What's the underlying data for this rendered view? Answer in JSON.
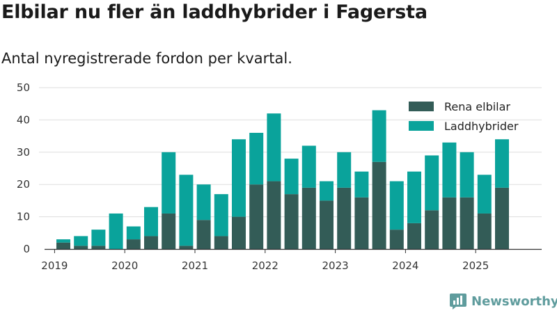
{
  "header": {
    "title": "Elbilar nu fler än laddhybrider i Fagersta",
    "subtitle": "Antal nyregistrerade fordon per kvartal."
  },
  "brand": {
    "name": "Newsworthy",
    "color": "#5f9c9d"
  },
  "colors": {
    "electric": "#335c57",
    "hybrid": "#0aa39b",
    "grid": "#dddddd",
    "axis": "#333333"
  },
  "chart_data": {
    "type": "bar",
    "stacked": true,
    "title": "Elbilar nu fler än laddhybrider i Fagersta",
    "subtitle": "Antal nyregistrerade fordon per kvartal.",
    "xlabel": "",
    "ylabel": "",
    "ylim": [
      0,
      50
    ],
    "yticks": [
      0,
      10,
      20,
      30,
      40,
      50
    ],
    "grid": true,
    "legend_position": "top-right",
    "year_ticks": [
      "2019",
      "2020",
      "2021",
      "2022",
      "2023",
      "2024",
      "2025"
    ],
    "categories": [
      "2019 Q1",
      "2019 Q2",
      "2019 Q3",
      "2019 Q4",
      "2020 Q1",
      "2020 Q2",
      "2020 Q3",
      "2020 Q4",
      "2021 Q1",
      "2021 Q2",
      "2021 Q3",
      "2021 Q4",
      "2022 Q1",
      "2022 Q2",
      "2022 Q3",
      "2022 Q4",
      "2023 Q1",
      "2023 Q2",
      "2023 Q3",
      "2023 Q4",
      "2024 Q1",
      "2024 Q2",
      "2024 Q3",
      "2024 Q4",
      "2025 Q1",
      "2025 Q2",
      "2025 Q3"
    ],
    "series": [
      {
        "name": "Rena elbilar",
        "values": [
          2,
          1,
          1,
          0,
          3,
          4,
          11,
          1,
          9,
          4,
          10,
          20,
          21,
          17,
          19,
          15,
          19,
          16,
          27,
          6,
          8,
          12,
          16,
          16,
          11,
          19,
          0
        ]
      },
      {
        "name": "Laddhybrider",
        "values": [
          1,
          3,
          5,
          11,
          4,
          9,
          19,
          22,
          11,
          13,
          24,
          16,
          21,
          11,
          13,
          6,
          11,
          8,
          16,
          15,
          16,
          17,
          17,
          14,
          12,
          15,
          0
        ]
      }
    ]
  }
}
